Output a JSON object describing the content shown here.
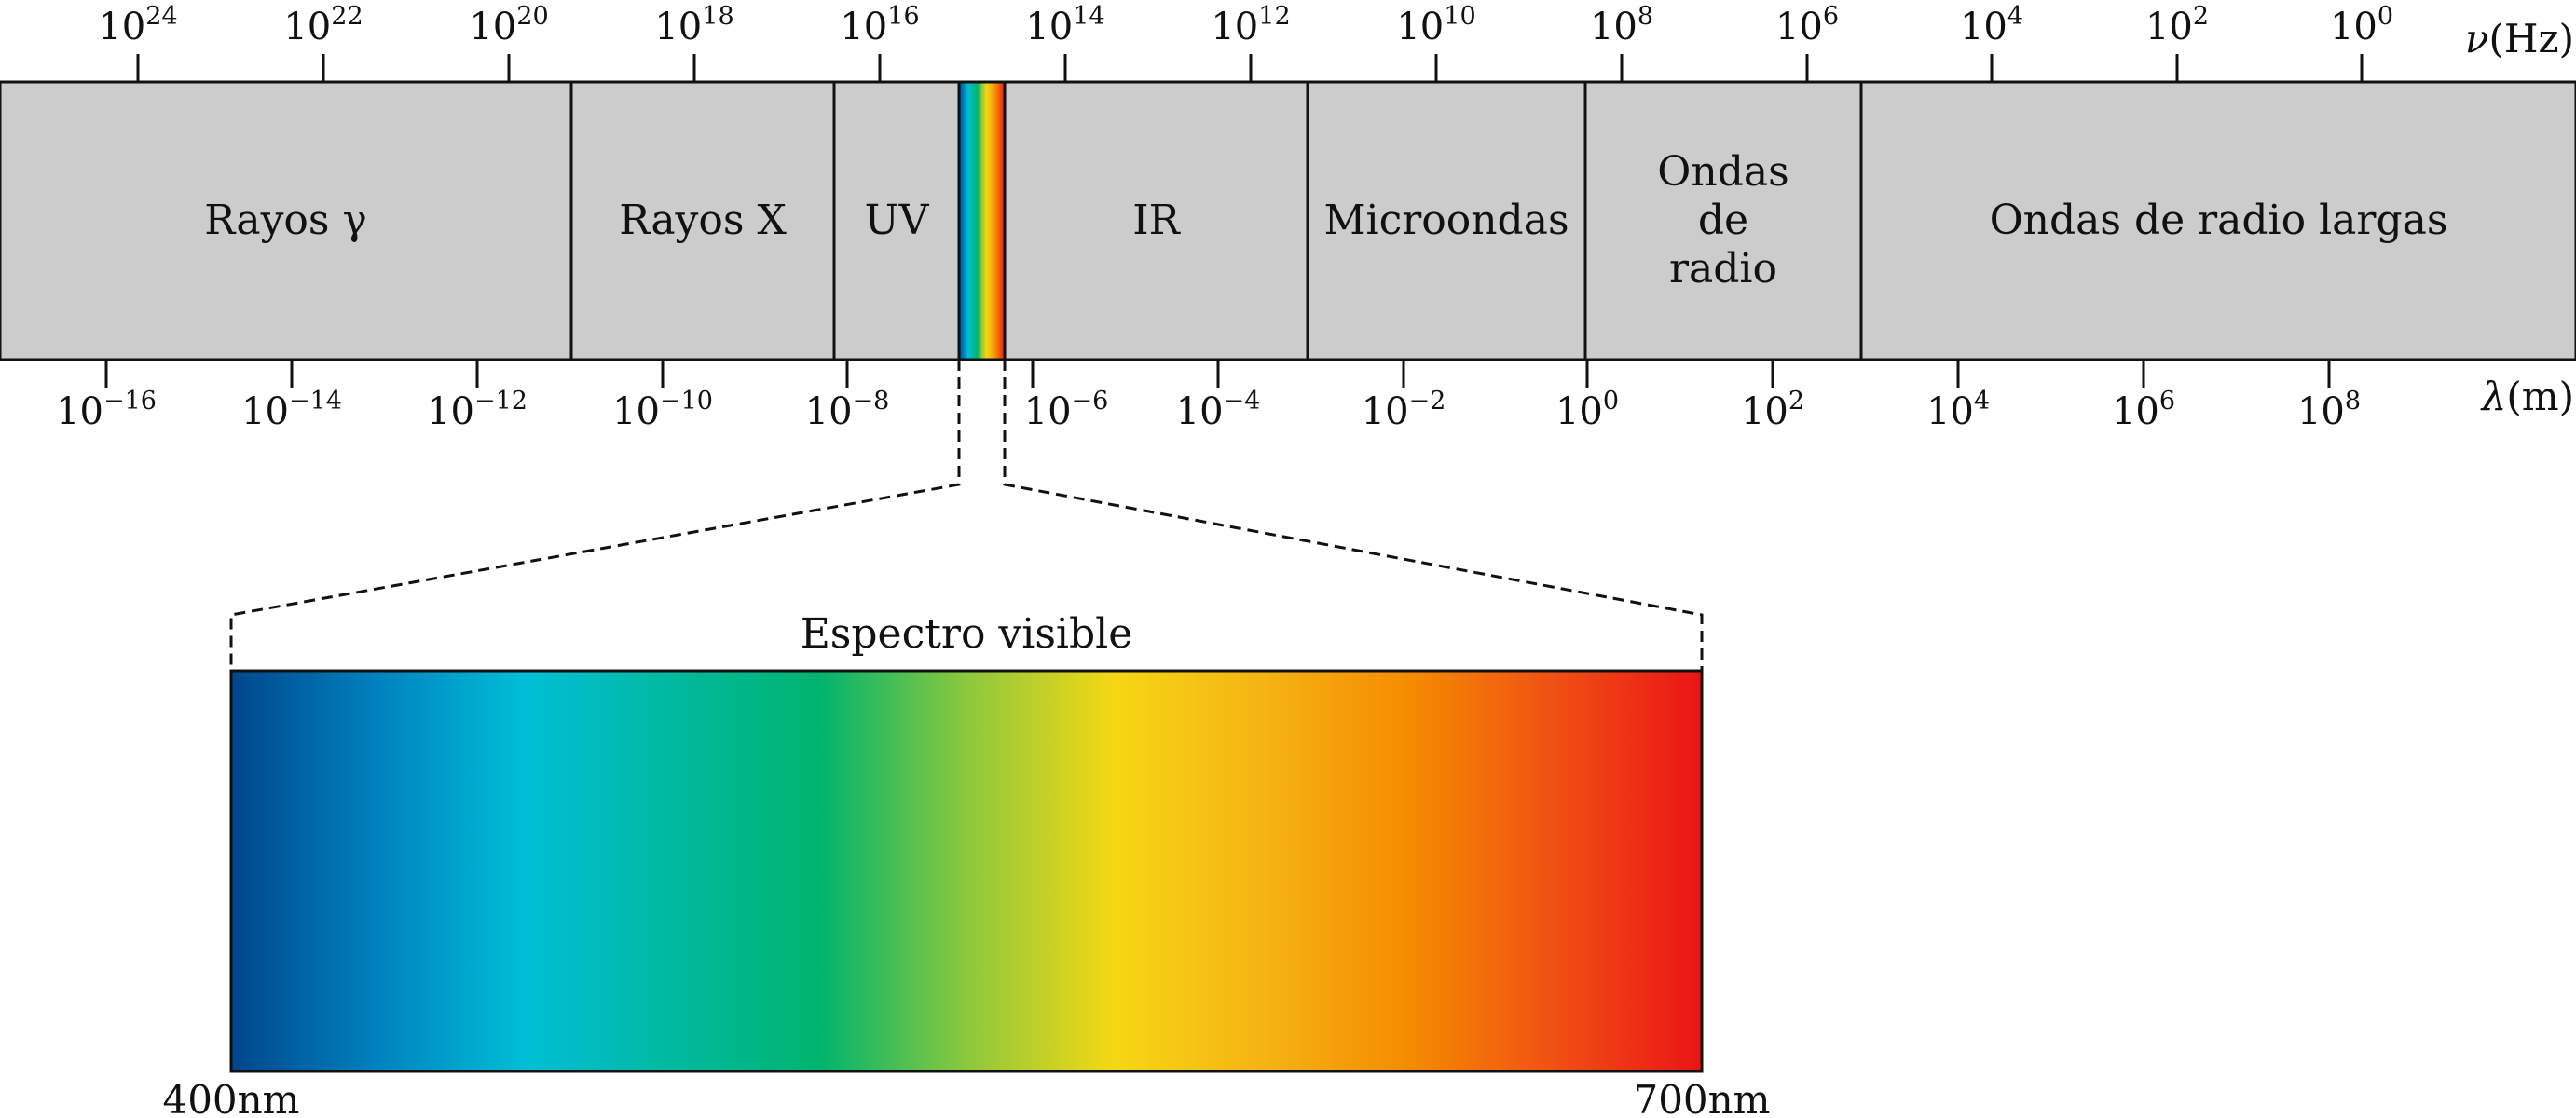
{
  "frequency_axis": {
    "unit_symbol": "ν",
    "unit": "(Hz)",
    "ticks": [
      {
        "base": "10",
        "exp": "24"
      },
      {
        "base": "10",
        "exp": "22"
      },
      {
        "base": "10",
        "exp": "20"
      },
      {
        "base": "10",
        "exp": "18"
      },
      {
        "base": "10",
        "exp": "16"
      },
      {
        "base": "10",
        "exp": "14"
      },
      {
        "base": "10",
        "exp": "12"
      },
      {
        "base": "10",
        "exp": "10"
      },
      {
        "base": "10",
        "exp": "8"
      },
      {
        "base": "10",
        "exp": "6"
      },
      {
        "base": "10",
        "exp": "4"
      },
      {
        "base": "10",
        "exp": "2"
      },
      {
        "base": "10",
        "exp": "0"
      }
    ]
  },
  "wavelength_axis": {
    "unit_symbol": "λ",
    "unit": "(m)",
    "ticks": [
      {
        "base": "10",
        "exp": "−16"
      },
      {
        "base": "10",
        "exp": "−14"
      },
      {
        "base": "10",
        "exp": "−12"
      },
      {
        "base": "10",
        "exp": "−10"
      },
      {
        "base": "10",
        "exp": "−8"
      },
      {
        "base": "10",
        "exp": "−6"
      },
      {
        "base": "10",
        "exp": "−4"
      },
      {
        "base": "10",
        "exp": "−2"
      },
      {
        "base": "10",
        "exp": "0"
      },
      {
        "base": "10",
        "exp": "2"
      },
      {
        "base": "10",
        "exp": "4"
      },
      {
        "base": "10",
        "exp": "6"
      },
      {
        "base": "10",
        "exp": "8"
      }
    ]
  },
  "bands": [
    {
      "id": "gamma",
      "lines": [
        "Rayos γ"
      ]
    },
    {
      "id": "xray",
      "lines": [
        "Rayos X"
      ]
    },
    {
      "id": "uv",
      "lines": [
        "UV"
      ]
    },
    {
      "id": "visible",
      "lines": []
    },
    {
      "id": "ir",
      "lines": [
        "IR"
      ]
    },
    {
      "id": "microwave",
      "lines": [
        "Microondas"
      ]
    },
    {
      "id": "radio",
      "lines": [
        "Ondas",
        "de",
        "radio"
      ]
    },
    {
      "id": "long-radio",
      "lines": [
        "Ondas de radio largas"
      ]
    }
  ],
  "visible_spectrum": {
    "title": "Espectro visible",
    "min_label": "400nm",
    "max_label": "700nm"
  },
  "colors": {
    "band_fill": "#cccccc",
    "stroke": "#111111",
    "spectrum": [
      "#00468c",
      "#0082be",
      "#00bed7",
      "#00b9a0",
      "#00b46e",
      "#8cc83c",
      "#f5d714",
      "#f5b414",
      "#f58c00",
      "#f05014",
      "#eb1414"
    ]
  }
}
